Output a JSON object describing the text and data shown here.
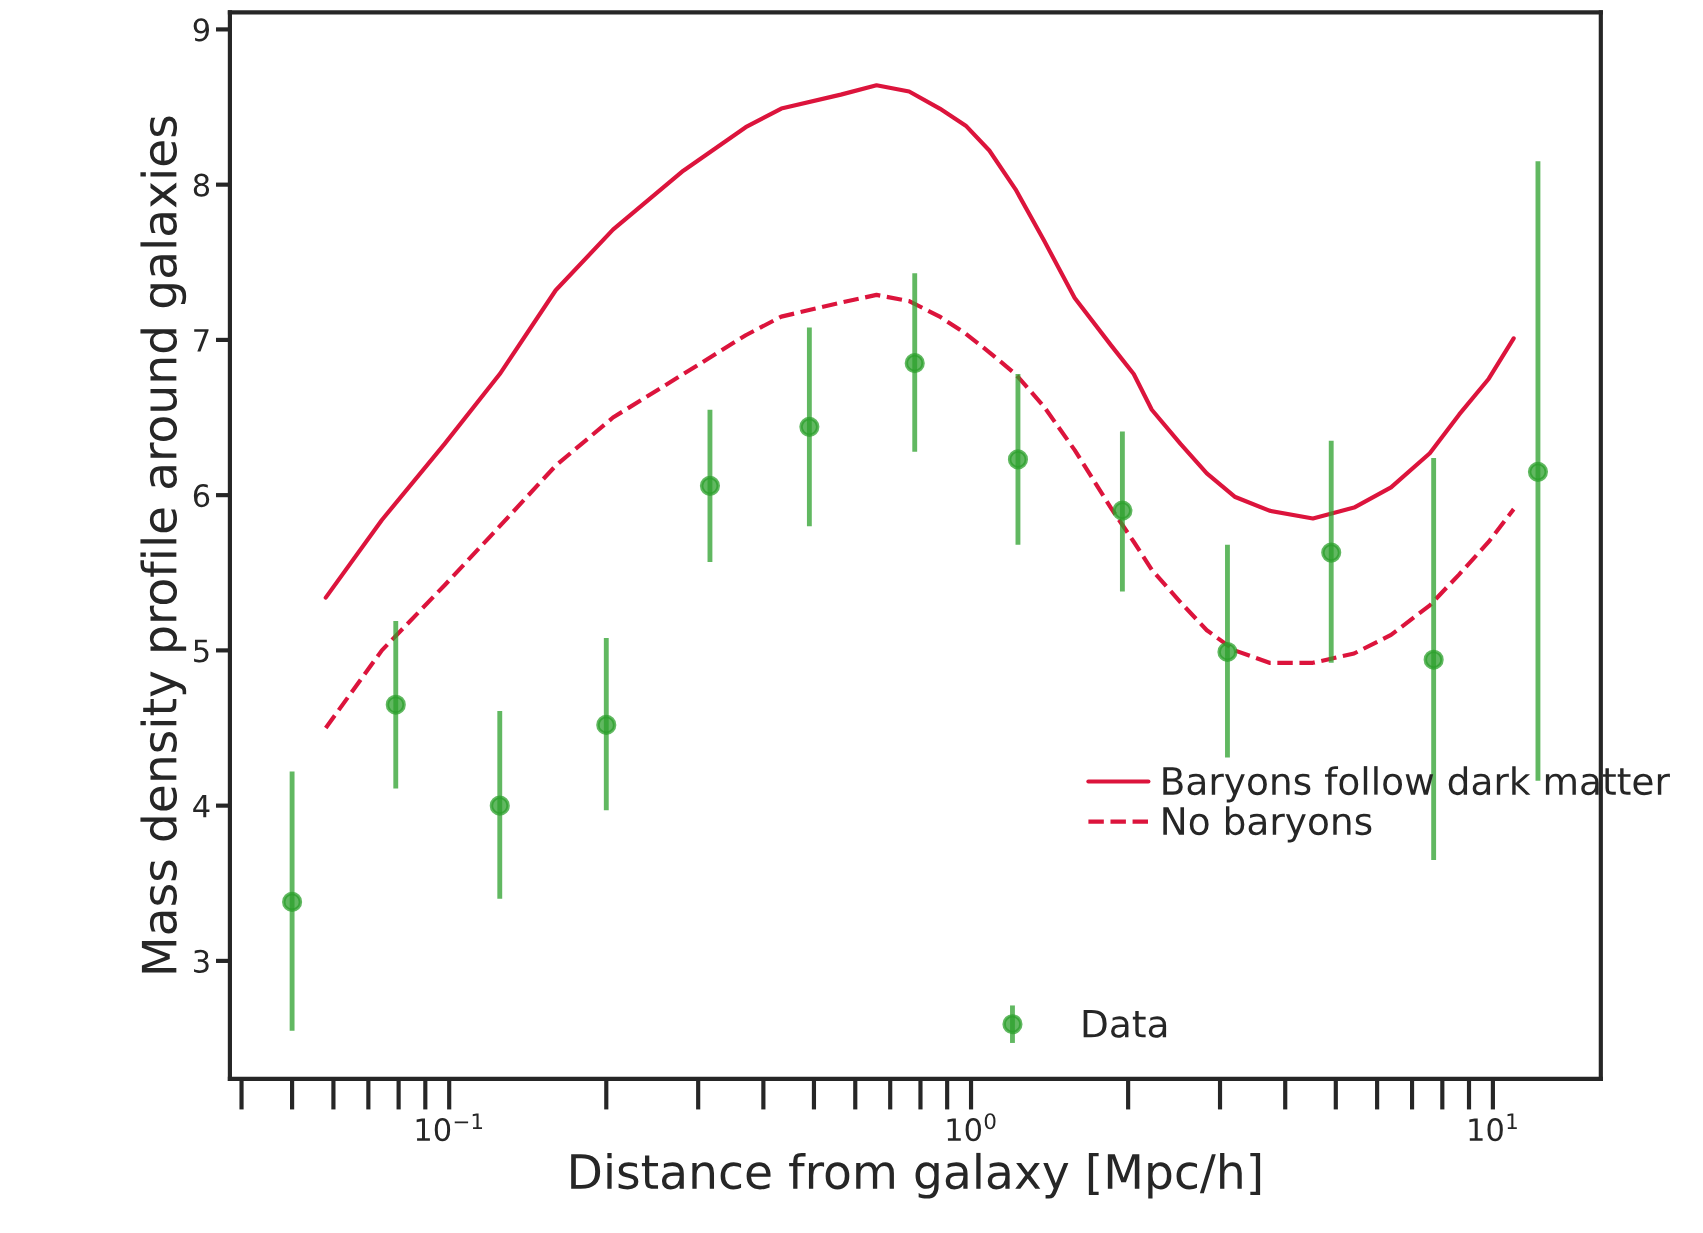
{
  "chart_data": {
    "type": "line",
    "xlabel": "Distance from galaxy [Mpc/h]",
    "ylabel": "Mass density profile around galaxies",
    "log": "x",
    "xlim": [
      0.038,
      16.1
    ],
    "ylim": [
      2.24,
      9.11
    ],
    "xticks": [
      {
        "value": 0.1,
        "label": "10$^{−1}$"
      },
      {
        "value": 1,
        "label": "10$^{0}$"
      },
      {
        "value": 10,
        "label": "10$^{1}$"
      }
    ],
    "yticks": [
      3,
      4,
      5,
      6,
      7,
      8,
      9
    ],
    "grid": false,
    "legend": "bottom right",
    "series": [
      {
        "name": "Baryons follow dark matter",
        "type": "line",
        "line_style": "solid",
        "color": "#dc143c",
        "x": [
          0.058,
          0.0743,
          0.098,
          0.125,
          0.16,
          0.206,
          0.281,
          0.37,
          0.433,
          0.563,
          0.659,
          0.761,
          0.871,
          0.977,
          1.084,
          1.217,
          1.38,
          1.58,
          1.86,
          2.05,
          2.22,
          2.52,
          2.83,
          3.2,
          3.73,
          4.52,
          5.42,
          6.38,
          7.57,
          8.62,
          9.82,
          10.96
        ],
        "values": [
          5.34,
          5.84,
          6.33,
          6.78,
          7.32,
          7.71,
          8.09,
          8.37,
          8.49,
          8.58,
          8.64,
          8.6,
          8.49,
          8.38,
          8.22,
          7.97,
          7.64,
          7.27,
          6.96,
          6.78,
          6.55,
          6.33,
          6.14,
          5.99,
          5.9,
          5.85,
          5.92,
          6.05,
          6.27,
          6.52,
          6.75,
          7.01
        ]
      },
      {
        "name": "No baryons",
        "type": "line",
        "line_style": "dashed",
        "color": "#dc143c",
        "x": [
          0.058,
          0.0743,
          0.098,
          0.125,
          0.16,
          0.206,
          0.281,
          0.37,
          0.433,
          0.563,
          0.659,
          0.761,
          0.871,
          0.977,
          1.084,
          1.217,
          1.38,
          1.58,
          1.86,
          2.05,
          2.22,
          2.52,
          2.83,
          3.2,
          3.73,
          4.52,
          5.42,
          6.38,
          7.57,
          8.62,
          9.82,
          10.96
        ],
        "values": [
          4.5,
          5.0,
          5.42,
          5.8,
          6.19,
          6.5,
          6.78,
          7.03,
          7.15,
          7.24,
          7.29,
          7.25,
          7.15,
          7.04,
          6.92,
          6.78,
          6.57,
          6.29,
          5.91,
          5.7,
          5.52,
          5.31,
          5.13,
          5.0,
          4.92,
          4.92,
          4.98,
          5.1,
          5.29,
          5.49,
          5.7,
          5.91
        ]
      },
      {
        "name": "Data",
        "type": "scatter",
        "marker": "circle",
        "color": "#2ca02c",
        "x": [
          0.05,
          0.079,
          0.125,
          0.2,
          0.316,
          0.49,
          0.78,
          1.23,
          1.95,
          3.1,
          4.9,
          7.7,
          12.2
        ],
        "values": [
          3.38,
          4.65,
          4.0,
          4.52,
          6.06,
          6.44,
          6.85,
          6.23,
          5.9,
          4.99,
          5.63,
          4.94,
          6.15
        ],
        "errors": [
          [
            2.55,
            4.22
          ],
          [
            4.11,
            5.19
          ],
          [
            3.4,
            4.61
          ],
          [
            3.97,
            5.08
          ],
          [
            5.57,
            6.55
          ],
          [
            5.8,
            7.08
          ],
          [
            6.28,
            7.43
          ],
          [
            5.68,
            6.78
          ],
          [
            5.38,
            6.41
          ],
          [
            4.31,
            5.68
          ],
          [
            4.92,
            6.35
          ],
          [
            3.65,
            6.24
          ],
          [
            4.16,
            8.15
          ]
        ]
      }
    ]
  }
}
